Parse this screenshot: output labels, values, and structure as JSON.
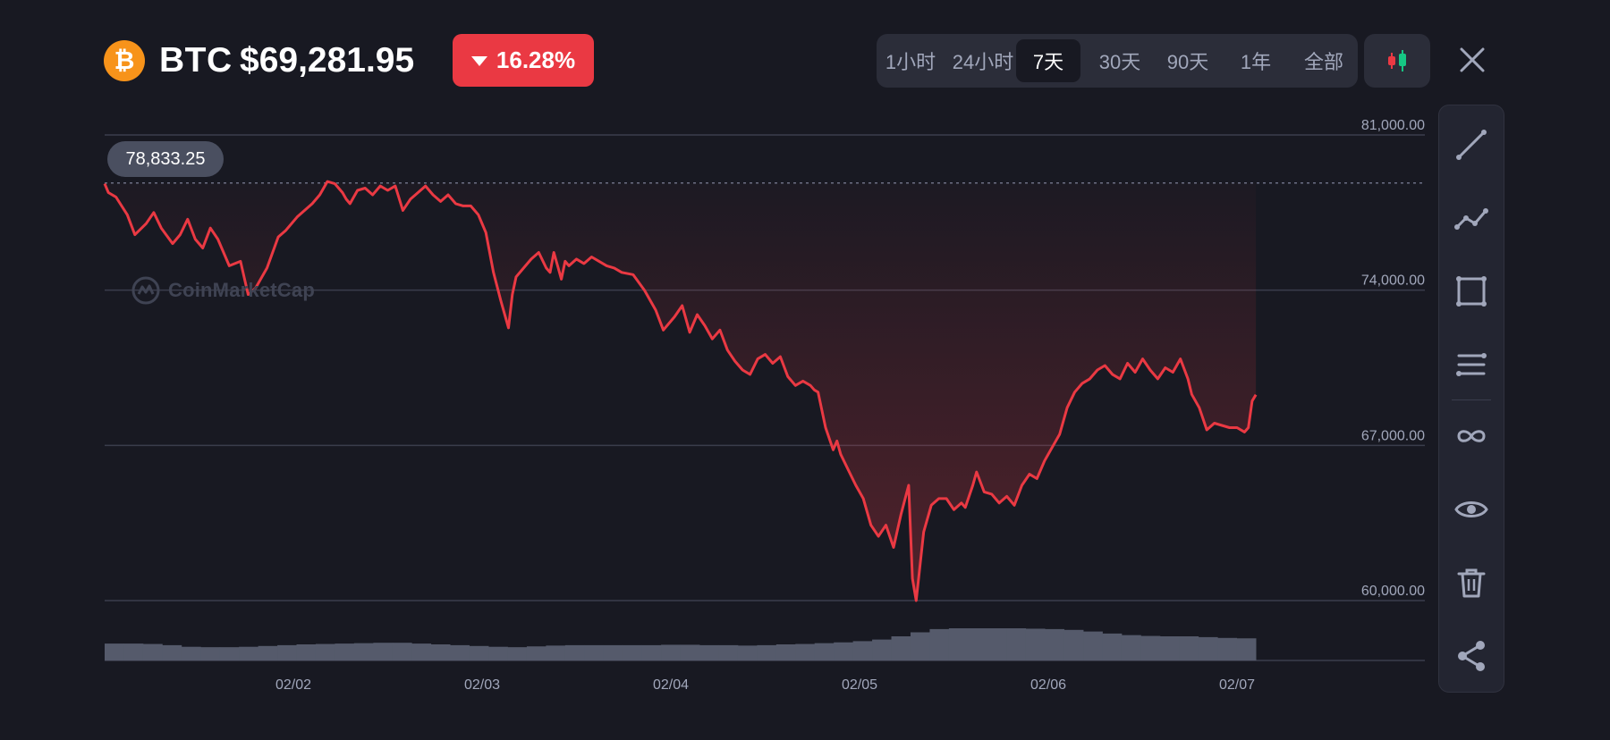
{
  "header": {
    "coin_symbol": "BTC",
    "price": "$69,281.95",
    "change_percent": "16.28%",
    "change_direction": "down",
    "coin_icon": "bitcoin-logo-icon"
  },
  "range_tabs": [
    {
      "label": "1小时",
      "active": false
    },
    {
      "label": "24小时",
      "active": false
    },
    {
      "label": "7天",
      "active": true
    },
    {
      "label": "30天",
      "active": false
    },
    {
      "label": "90天",
      "active": false
    },
    {
      "label": "1年",
      "active": false
    },
    {
      "label": "全部",
      "active": false
    }
  ],
  "toolbar": {
    "tools": [
      "trend-line-icon",
      "polyline-icon",
      "rectangle-icon",
      "parallel-lines-icon",
      "infinity-icon",
      "eye-icon",
      "trash-icon",
      "share-icon"
    ]
  },
  "chart": {
    "high_label": "78,833.25",
    "watermark": "CoinMarketCap"
  },
  "chart_data": {
    "type": "line",
    "y_ticks": [
      "81,000.00",
      "74,000.00",
      "67,000.00",
      "60,000.00"
    ],
    "ylim": [
      60000,
      81000
    ],
    "x_ticks": [
      "02/02",
      "02/03",
      "02/04",
      "02/05",
      "02/06",
      "02/07"
    ],
    "series": [
      {
        "x": [
          0,
          0.02,
          0.06,
          0.12,
          0.16,
          0.22,
          0.26,
          0.3,
          0.36,
          0.4,
          0.44,
          0.48,
          0.52,
          0.56,
          0.6,
          0.66,
          0.72,
          0.76,
          0.8,
          0.86,
          0.92,
          0.96,
          1.02,
          1.1,
          1.14,
          1.18,
          1.22,
          1.26,
          1.28,
          1.3,
          1.34,
          1.38,
          1.42,
          1.46,
          1.5,
          1.54,
          1.58,
          1.62,
          1.66,
          1.7,
          1.74,
          1.78,
          1.82,
          1.86,
          1.9,
          1.94,
          1.98,
          2.02,
          2.06,
          2.1,
          2.14,
          2.16,
          2.18,
          2.22,
          2.26,
          2.3,
          2.34,
          2.36,
          2.38,
          2.4,
          2.42,
          2.44,
          2.46,
          2.5,
          2.54,
          2.58,
          2.62,
          2.66,
          2.7,
          2.74,
          2.8,
          2.86,
          2.92,
          2.96,
          3.02,
          3.06,
          3.1,
          3.14,
          3.18,
          3.22,
          3.26,
          3.3,
          3.34,
          3.38,
          3.42,
          3.46,
          3.5,
          3.54,
          3.58,
          3.62,
          3.66,
          3.7,
          3.74,
          3.76,
          3.78,
          3.82,
          3.86,
          3.88,
          3.9,
          3.94,
          3.98,
          4.02,
          4.06,
          4.1,
          4.14,
          4.18,
          4.22,
          4.26,
          4.28,
          4.3,
          4.34,
          4.38,
          4.42,
          4.46,
          4.5,
          4.54,
          4.56,
          4.58,
          4.6,
          4.62,
          4.66,
          4.7,
          4.74,
          4.78,
          4.82,
          4.86,
          4.9,
          4.94,
          4.98,
          5.02,
          5.06,
          5.1,
          5.14,
          5.18,
          5.22,
          5.26,
          5.3,
          5.34,
          5.38,
          5.42,
          5.46,
          5.5,
          5.54,
          5.58,
          5.62,
          5.66,
          5.7,
          5.74,
          5.76,
          5.8,
          5.84,
          5.88,
          5.92,
          5.96,
          6.0,
          6.04,
          6.06,
          6.08,
          6.1
        ],
        "y": [
          78800,
          78400,
          78200,
          77400,
          76500,
          77000,
          77500,
          76800,
          76100,
          76500,
          77200,
          76300,
          75900,
          76800,
          76300,
          75100,
          75300,
          73800,
          74100,
          75000,
          76400,
          76700,
          77300,
          77900,
          78300,
          78900,
          78800,
          78400,
          78100,
          77900,
          78500,
          78600,
          78300,
          78700,
          78500,
          78700,
          77600,
          78100,
          78400,
          78700,
          78300,
          78000,
          78300,
          77900,
          77800,
          77800,
          77400,
          76600,
          74800,
          73500,
          72300,
          73800,
          74600,
          75000,
          75400,
          75700,
          75000,
          74800,
          75700,
          75100,
          74500,
          75300,
          75100,
          75400,
          75200,
          75500,
          75300,
          75100,
          75000,
          74800,
          74700,
          74000,
          73100,
          72200,
          72800,
          73300,
          72100,
          72900,
          72400,
          71800,
          72200,
          71300,
          70800,
          70400,
          70200,
          70900,
          71100,
          70700,
          71000,
          70100,
          69700,
          69900,
          69700,
          69500,
          69400,
          67800,
          66800,
          67200,
          66600,
          65900,
          65200,
          64600,
          63400,
          62900,
          63400,
          62400,
          63900,
          65200,
          61000,
          60000,
          63100,
          64300,
          64600,
          64600,
          64100,
          64400,
          64200,
          64700,
          65200,
          65800,
          64900,
          64800,
          64400,
          64700,
          64300,
          65200,
          65700,
          65500,
          66300,
          66900,
          67500,
          68700,
          69400,
          69800,
          70000,
          70400,
          70600,
          70200,
          70000,
          70700,
          70300,
          70900,
          70400,
          70000,
          70500,
          70300,
          70900,
          70000,
          69300,
          68700,
          67700,
          68000,
          67900,
          67800,
          67800,
          67600,
          67800,
          69000,
          69282
        ]
      }
    ],
    "volume": [
      0.42,
      0.42,
      0.41,
      0.38,
      0.34,
      0.33,
      0.33,
      0.34,
      0.36,
      0.38,
      0.4,
      0.41,
      0.42,
      0.43,
      0.44,
      0.44,
      0.42,
      0.4,
      0.38,
      0.36,
      0.34,
      0.33,
      0.35,
      0.37,
      0.38,
      0.38,
      0.38,
      0.38,
      0.38,
      0.39,
      0.39,
      0.38,
      0.38,
      0.37,
      0.38,
      0.4,
      0.41,
      0.43,
      0.45,
      0.48,
      0.52,
      0.6,
      0.7,
      0.78,
      0.8,
      0.8,
      0.8,
      0.8,
      0.79,
      0.78,
      0.76,
      0.72,
      0.67,
      0.63,
      0.61,
      0.6,
      0.6,
      0.58,
      0.56,
      0.55
    ],
    "legend": "none"
  },
  "colors": {
    "background": "#181922",
    "line": "#EA3943",
    "line_up": "#16C784",
    "badge_red": "#EA3943",
    "panel": "#2B2D39"
  }
}
